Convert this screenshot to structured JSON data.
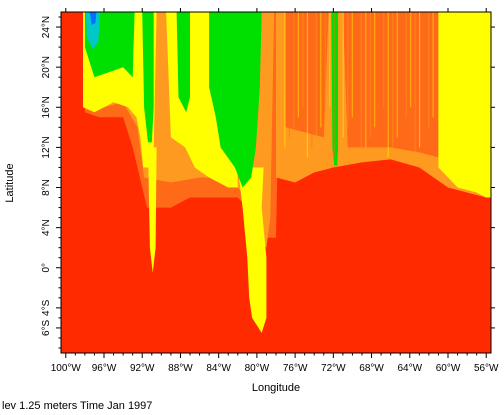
{
  "chart_data": {
    "type": "heatmap",
    "title": "",
    "xlabel": "Longitude",
    "ylabel": "Latitude",
    "xlim": [
      -100.5,
      -55.5
    ],
    "ylim": [
      -8.5,
      25.5
    ],
    "x_ticks": [
      {
        "value": -100,
        "label": "100°W"
      },
      {
        "value": -96,
        "label": "96°W"
      },
      {
        "value": -92,
        "label": "92°W"
      },
      {
        "value": -88,
        "label": "88°W"
      },
      {
        "value": -84,
        "label": "84°W"
      },
      {
        "value": -80,
        "label": "80°W"
      },
      {
        "value": -76,
        "label": "76°W"
      },
      {
        "value": -72,
        "label": "72°W"
      },
      {
        "value": -68,
        "label": "68°W"
      },
      {
        "value": -64,
        "label": "64°W"
      },
      {
        "value": -60,
        "label": "60°W"
      },
      {
        "value": -56,
        "label": "56°W"
      }
    ],
    "y_ticks": [
      {
        "value": -6,
        "label": "6°S"
      },
      {
        "value": -4,
        "label": "4°S"
      },
      {
        "value": 0,
        "label": "0°"
      },
      {
        "value": 4,
        "label": "4°N"
      },
      {
        "value": 8,
        "label": "8°N"
      },
      {
        "value": 12,
        "label": "12°N"
      },
      {
        "value": 16,
        "label": "16°N"
      },
      {
        "value": 20,
        "label": "20°N"
      },
      {
        "value": 24,
        "label": "24°N"
      }
    ],
    "colors": {
      "red": "#ff2a00",
      "orange": "#ff6a18",
      "light_orange": "#ff9a20",
      "yellow": "#ffff00",
      "green": "#00e000",
      "cyan": "#00c8c8",
      "blue": "#0070ff"
    },
    "regions": [
      {
        "name": "blue-pool",
        "color": "blue",
        "x": [
          -97.6,
          -96.8
        ],
        "y": [
          24.0,
          25.5
        ]
      },
      {
        "name": "cyan-patch",
        "color": "cyan",
        "x": [
          -98.0,
          -96.4
        ],
        "y": [
          21.5,
          25.5
        ]
      },
      {
        "name": "green-north-west",
        "color": "green",
        "x": [
          -98.0,
          -92.5
        ],
        "y": [
          19.0,
          25.5
        ]
      },
      {
        "name": "green-tongue-92",
        "color": "green",
        "x": [
          -92.0,
          -90.8
        ],
        "y": [
          12.0,
          25.5
        ]
      },
      {
        "name": "green-tongue-88",
        "color": "green",
        "x": [
          -88.3,
          -87.0
        ],
        "y": [
          15.0,
          25.5
        ]
      },
      {
        "name": "green-band-80",
        "color": "green",
        "x": [
          -85.0,
          -79.5
        ],
        "y": [
          9.0,
          25.5
        ]
      },
      {
        "name": "green-stripe-71",
        "color": "green",
        "x": [
          -72.2,
          -71.5
        ],
        "y": [
          10.0,
          25.5
        ]
      },
      {
        "name": "yellow-plume-80",
        "color": "yellow",
        "x": [
          -82.0,
          -79.0
        ],
        "y": [
          -7.0,
          9.0
        ]
      },
      {
        "name": "yellow-band-east",
        "color": "yellow",
        "x": [
          -61.0,
          -56.0
        ],
        "y": [
          7.0,
          25.5
        ]
      }
    ]
  },
  "footer": {
    "caption": "lev 1.25 meters Time Jan 1997"
  }
}
